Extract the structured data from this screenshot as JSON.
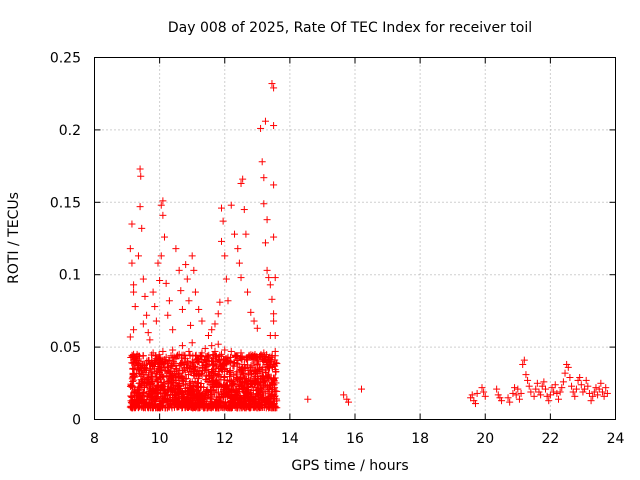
{
  "chart_data": {
    "type": "scatter",
    "title": "Day 008 of 2025, Rate Of TEC Index for receiver toil",
    "xlabel": "GPS time / hours",
    "ylabel": "ROTI / TECUs",
    "xlim": [
      8,
      24
    ],
    "ylim": [
      0,
      0.25
    ],
    "grid": true,
    "marker": "+",
    "series_color": "#ff0000",
    "x_ticks": [
      {
        "value": 8,
        "label": "8"
      },
      {
        "value": 10,
        "label": "10"
      },
      {
        "value": 12,
        "label": "12"
      },
      {
        "value": 14,
        "label": "14"
      },
      {
        "value": 16,
        "label": "16"
      },
      {
        "value": 18,
        "label": "18"
      },
      {
        "value": 20,
        "label": "20"
      },
      {
        "value": 22,
        "label": "22"
      },
      {
        "value": 24,
        "label": "24"
      }
    ],
    "y_ticks": [
      {
        "value": 0,
        "label": "0"
      },
      {
        "value": 0.05,
        "label": "0.05"
      },
      {
        "value": 0.1,
        "label": "0.1"
      },
      {
        "value": 0.15,
        "label": "0.15"
      },
      {
        "value": 0.2,
        "label": "0.2"
      },
      {
        "value": 0.25,
        "label": "0.25"
      }
    ],
    "series": [
      {
        "name": "ROTI",
        "points": [
          [
            9.1,
            0.118
          ],
          [
            9.15,
            0.135
          ],
          [
            9.15,
            0.108
          ],
          [
            9.2,
            0.093
          ],
          [
            9.2,
            0.088
          ],
          [
            9.25,
            0.078
          ],
          [
            9.2,
            0.062
          ],
          [
            9.1,
            0.057
          ],
          [
            9.4,
            0.173
          ],
          [
            9.42,
            0.168
          ],
          [
            9.4,
            0.147
          ],
          [
            9.45,
            0.132
          ],
          [
            9.35,
            0.113
          ],
          [
            9.5,
            0.097
          ],
          [
            9.55,
            0.085
          ],
          [
            9.6,
            0.072
          ],
          [
            9.5,
            0.066
          ],
          [
            9.65,
            0.06
          ],
          [
            9.7,
            0.055
          ],
          [
            9.8,
            0.088
          ],
          [
            9.85,
            0.078
          ],
          [
            9.9,
            0.068
          ],
          [
            9.95,
            0.108
          ],
          [
            10.0,
            0.096
          ],
          [
            10.05,
            0.148
          ],
          [
            10.1,
            0.151
          ],
          [
            10.1,
            0.141
          ],
          [
            10.15,
            0.126
          ],
          [
            10.05,
            0.113
          ],
          [
            10.2,
            0.094
          ],
          [
            10.3,
            0.082
          ],
          [
            10.25,
            0.072
          ],
          [
            10.4,
            0.062
          ],
          [
            10.5,
            0.118
          ],
          [
            10.6,
            0.103
          ],
          [
            10.65,
            0.089
          ],
          [
            10.7,
            0.076
          ],
          [
            10.8,
            0.107
          ],
          [
            10.85,
            0.097
          ],
          [
            10.9,
            0.082
          ],
          [
            10.95,
            0.065
          ],
          [
            11.0,
            0.113
          ],
          [
            11.05,
            0.103
          ],
          [
            11.1,
            0.088
          ],
          [
            11.2,
            0.076
          ],
          [
            11.3,
            0.068
          ],
          [
            11.5,
            0.058
          ],
          [
            11.6,
            0.062
          ],
          [
            11.7,
            0.066
          ],
          [
            11.8,
            0.073
          ],
          [
            11.85,
            0.081
          ],
          [
            11.9,
            0.146
          ],
          [
            11.95,
            0.137
          ],
          [
            11.9,
            0.123
          ],
          [
            12.0,
            0.113
          ],
          [
            12.05,
            0.097
          ],
          [
            12.1,
            0.082
          ],
          [
            12.2,
            0.148
          ],
          [
            12.3,
            0.128
          ],
          [
            12.4,
            0.118
          ],
          [
            12.45,
            0.108
          ],
          [
            12.5,
            0.098
          ],
          [
            12.55,
            0.166
          ],
          [
            12.5,
            0.163
          ],
          [
            12.6,
            0.145
          ],
          [
            12.65,
            0.128
          ],
          [
            12.7,
            0.088
          ],
          [
            12.8,
            0.074
          ],
          [
            12.9,
            0.068
          ],
          [
            13.0,
            0.063
          ],
          [
            13.1,
            0.201
          ],
          [
            13.15,
            0.178
          ],
          [
            13.2,
            0.167
          ],
          [
            13.25,
            0.206
          ],
          [
            13.2,
            0.149
          ],
          [
            13.3,
            0.138
          ],
          [
            13.25,
            0.122
          ],
          [
            13.3,
            0.103
          ],
          [
            13.35,
            0.098
          ],
          [
            13.4,
            0.093
          ],
          [
            13.45,
            0.232
          ],
          [
            13.5,
            0.229
          ],
          [
            13.5,
            0.203
          ],
          [
            13.5,
            0.162
          ],
          [
            13.5,
            0.126
          ],
          [
            13.55,
            0.098
          ],
          [
            13.45,
            0.083
          ],
          [
            13.5,
            0.073
          ],
          [
            13.5,
            0.068
          ],
          [
            13.55,
            0.058
          ],
          [
            13.4,
            0.058
          ],
          [
            13.55,
            0.047
          ],
          [
            9.2,
            0.045
          ],
          [
            9.3,
            0.041
          ],
          [
            9.4,
            0.036
          ],
          [
            9.5,
            0.044
          ],
          [
            9.6,
            0.039
          ],
          [
            9.7,
            0.035
          ],
          [
            9.8,
            0.046
          ],
          [
            9.9,
            0.042
          ],
          [
            10.0,
            0.038
          ],
          [
            10.1,
            0.047
          ],
          [
            10.2,
            0.043
          ],
          [
            10.3,
            0.041
          ],
          [
            10.4,
            0.048
          ],
          [
            10.5,
            0.037
          ],
          [
            10.6,
            0.045
          ],
          [
            10.7,
            0.051
          ],
          [
            10.8,
            0.042
          ],
          [
            10.9,
            0.047
          ],
          [
            11.0,
            0.053
          ],
          [
            11.1,
            0.044
          ],
          [
            11.2,
            0.041
          ],
          [
            11.3,
            0.046
          ],
          [
            11.4,
            0.049
          ],
          [
            11.5,
            0.043
          ],
          [
            11.6,
            0.051
          ],
          [
            11.7,
            0.047
          ],
          [
            11.8,
            0.052
          ],
          [
            11.9,
            0.045
          ],
          [
            12.0,
            0.048
          ],
          [
            12.1,
            0.043
          ],
          [
            12.2,
            0.047
          ],
          [
            12.3,
            0.039
          ],
          [
            12.4,
            0.044
          ],
          [
            12.5,
            0.046
          ],
          [
            12.6,
            0.038
          ],
          [
            12.7,
            0.041
          ],
          [
            12.8,
            0.036
          ],
          [
            12.9,
            0.042
          ],
          [
            13.0,
            0.039
          ],
          [
            13.1,
            0.044
          ],
          [
            13.2,
            0.046
          ],
          [
            13.3,
            0.037
          ],
          [
            13.4,
            0.041
          ],
          [
            13.5,
            0.038
          ],
          [
            14.55,
            0.014
          ],
          [
            15.65,
            0.017
          ],
          [
            15.75,
            0.014
          ],
          [
            15.8,
            0.012
          ],
          [
            16.2,
            0.021
          ],
          [
            19.55,
            0.015
          ],
          [
            19.6,
            0.017
          ],
          [
            19.65,
            0.013
          ],
          [
            19.7,
            0.011
          ],
          [
            19.75,
            0.018
          ],
          [
            19.9,
            0.022
          ],
          [
            19.95,
            0.019
          ],
          [
            20.0,
            0.016
          ],
          [
            20.35,
            0.021
          ],
          [
            20.4,
            0.017
          ],
          [
            20.45,
            0.015
          ],
          [
            20.5,
            0.013
          ],
          [
            20.7,
            0.015
          ],
          [
            20.75,
            0.012
          ],
          [
            20.85,
            0.018
          ],
          [
            20.9,
            0.022
          ],
          [
            20.95,
            0.017
          ],
          [
            21.0,
            0.021
          ],
          [
            21.05,
            0.014
          ],
          [
            21.1,
            0.018
          ],
          [
            21.15,
            0.038
          ],
          [
            21.2,
            0.041
          ],
          [
            21.25,
            0.031
          ],
          [
            21.3,
            0.027
          ],
          [
            21.35,
            0.023
          ],
          [
            21.4,
            0.019
          ],
          [
            21.5,
            0.016
          ],
          [
            21.55,
            0.021
          ],
          [
            21.6,
            0.025
          ],
          [
            21.65,
            0.019
          ],
          [
            21.7,
            0.017
          ],
          [
            21.75,
            0.023
          ],
          [
            21.8,
            0.026
          ],
          [
            21.85,
            0.021
          ],
          [
            21.9,
            0.016
          ],
          [
            21.95,
            0.013
          ],
          [
            22.0,
            0.017
          ],
          [
            22.05,
            0.022
          ],
          [
            22.1,
            0.019
          ],
          [
            22.15,
            0.024
          ],
          [
            22.2,
            0.018
          ],
          [
            22.25,
            0.014
          ],
          [
            22.3,
            0.019
          ],
          [
            22.35,
            0.022
          ],
          [
            22.4,
            0.026
          ],
          [
            22.45,
            0.032
          ],
          [
            22.5,
            0.038
          ],
          [
            22.55,
            0.036
          ],
          [
            22.6,
            0.029
          ],
          [
            22.65,
            0.023
          ],
          [
            22.7,
            0.019
          ],
          [
            22.75,
            0.016
          ],
          [
            22.8,
            0.021
          ],
          [
            22.85,
            0.027
          ],
          [
            22.9,
            0.029
          ],
          [
            22.95,
            0.024
          ],
          [
            23.0,
            0.019
          ],
          [
            23.05,
            0.021
          ],
          [
            23.1,
            0.027
          ],
          [
            23.15,
            0.023
          ],
          [
            23.2,
            0.018
          ],
          [
            23.25,
            0.013
          ],
          [
            23.3,
            0.016
          ],
          [
            23.35,
            0.019
          ],
          [
            23.4,
            0.022
          ],
          [
            23.45,
            0.017
          ],
          [
            23.5,
            0.021
          ],
          [
            23.55,
            0.025
          ],
          [
            23.6,
            0.019
          ],
          [
            23.65,
            0.016
          ],
          [
            23.7,
            0.022
          ],
          [
            23.75,
            0.018
          ]
        ],
        "dense_band": {
          "x_range": [
            9.1,
            13.6
          ],
          "y_range": [
            0.008,
            0.045
          ],
          "count": 1600,
          "seed": 8
        }
      }
    ]
  }
}
